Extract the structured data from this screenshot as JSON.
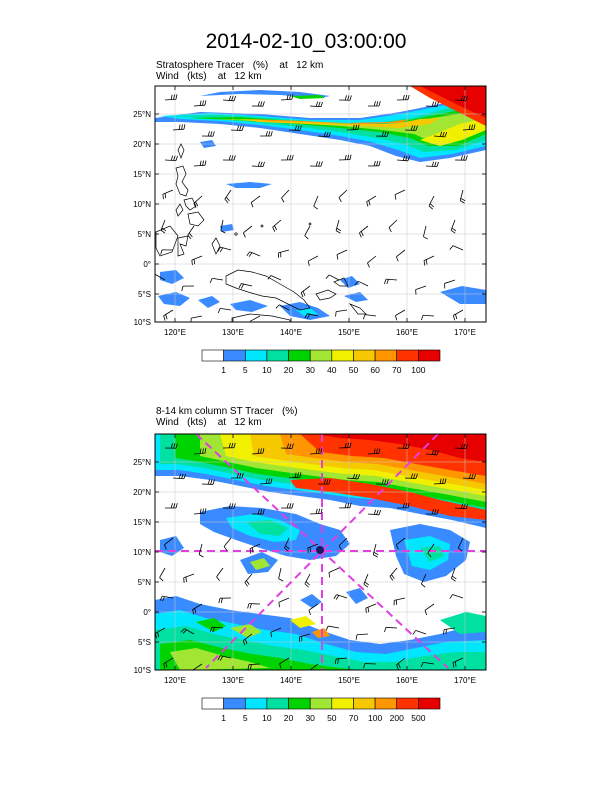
{
  "title": "2014-02-10_03:00:00",
  "panels": [
    {
      "field_label": "Stratosphere Tracer   (%)",
      "field_level": "at   12 km",
      "wind_label": "Wind   (kts)",
      "wind_level": "at   12 km",
      "lat_ticks": [
        "25°N",
        "20°N",
        "15°N",
        "10°N",
        "5°N",
        "0°",
        "5°S",
        "10°S"
      ],
      "lon_ticks": [
        "120°E",
        "130°E",
        "140°E",
        "150°E",
        "160°E",
        "170°E"
      ],
      "colorbar": {
        "labels": [
          "1",
          "5",
          "10",
          "20",
          "30",
          "40",
          "50",
          "60",
          "70",
          "100"
        ],
        "colors": [
          "#ffffff",
          "#3a8bff",
          "#00e6ff",
          "#00e0a0",
          "#00d400",
          "#a0e632",
          "#f0f000",
          "#f5c800",
          "#ff9600",
          "#ff3200",
          "#e60000"
        ]
      }
    },
    {
      "field_label": "8-14 km column ST Tracer   (%)",
      "field_level": "",
      "wind_label": "Wind   (kts)",
      "wind_level": "at   12 km",
      "lat_ticks": [
        "25°N",
        "20°N",
        "15°N",
        "10°N",
        "5°N",
        "0°",
        "5°S",
        "10°S"
      ],
      "lon_ticks": [
        "120°E",
        "130°E",
        "140°E",
        "150°E",
        "160°E",
        "170°E"
      ],
      "colorbar": {
        "labels": [
          "1",
          "5",
          "10",
          "20",
          "30",
          "50",
          "70",
          "100",
          "200",
          "500"
        ],
        "colors": [
          "#ffffff",
          "#3a8bff",
          "#00e6ff",
          "#00e0a0",
          "#00d400",
          "#a0e632",
          "#f0f000",
          "#f5c800",
          "#ff9600",
          "#ff3200",
          "#e60000"
        ]
      }
    }
  ],
  "colors": {
    "frame": "#000000",
    "grid": "#c8c8c8",
    "coast": "#000000",
    "marker_lines": "#e040e0"
  }
}
